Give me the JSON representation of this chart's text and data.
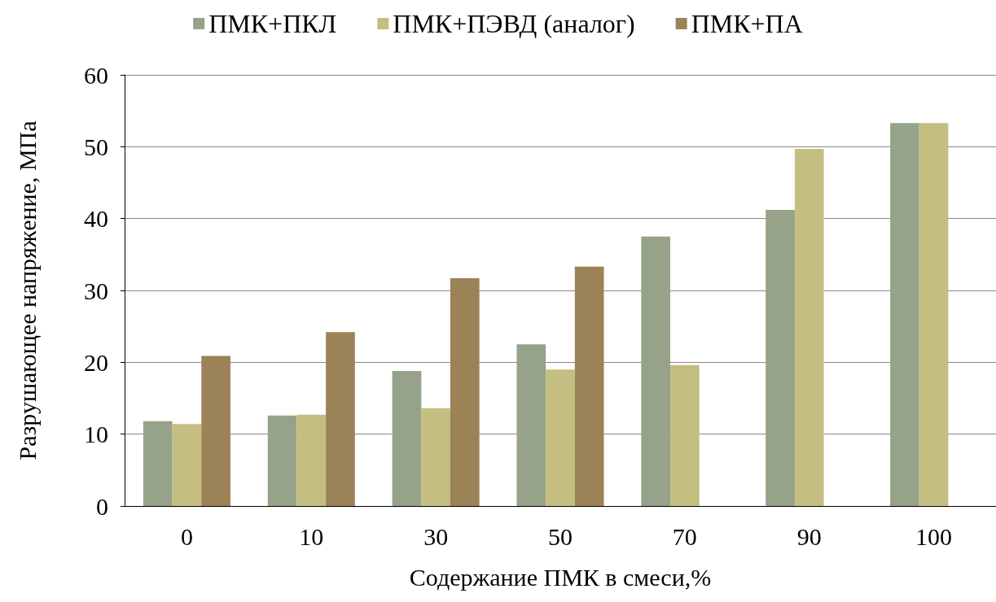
{
  "chart_data": {
    "type": "bar",
    "xlabel": "Содержание ПМК в смеси,%",
    "ylabel": "Разрушающее напряжение, МПа",
    "categories": [
      "0",
      "10",
      "30",
      "50",
      "70",
      "90",
      "100"
    ],
    "series": [
      {
        "name": "ПМК+ПКЛ",
        "color": "#96a38a",
        "values": [
          11.8,
          12.6,
          18.8,
          22.5,
          37.5,
          41.2,
          53.3
        ]
      },
      {
        "name": "ПМК+ПЭВД (аналог)",
        "color": "#c4bf81",
        "values": [
          11.4,
          12.7,
          13.6,
          19.0,
          19.6,
          49.7,
          53.3
        ]
      },
      {
        "name": "ПМК+ПА",
        "color": "#9c8257",
        "values": [
          20.9,
          24.2,
          31.7,
          33.3,
          null,
          null,
          null
        ]
      }
    ],
    "ylim": [
      0,
      60
    ],
    "yticks": [
      0,
      10,
      20,
      30,
      40,
      50,
      60
    ],
    "grid": "y",
    "legend": "top"
  }
}
